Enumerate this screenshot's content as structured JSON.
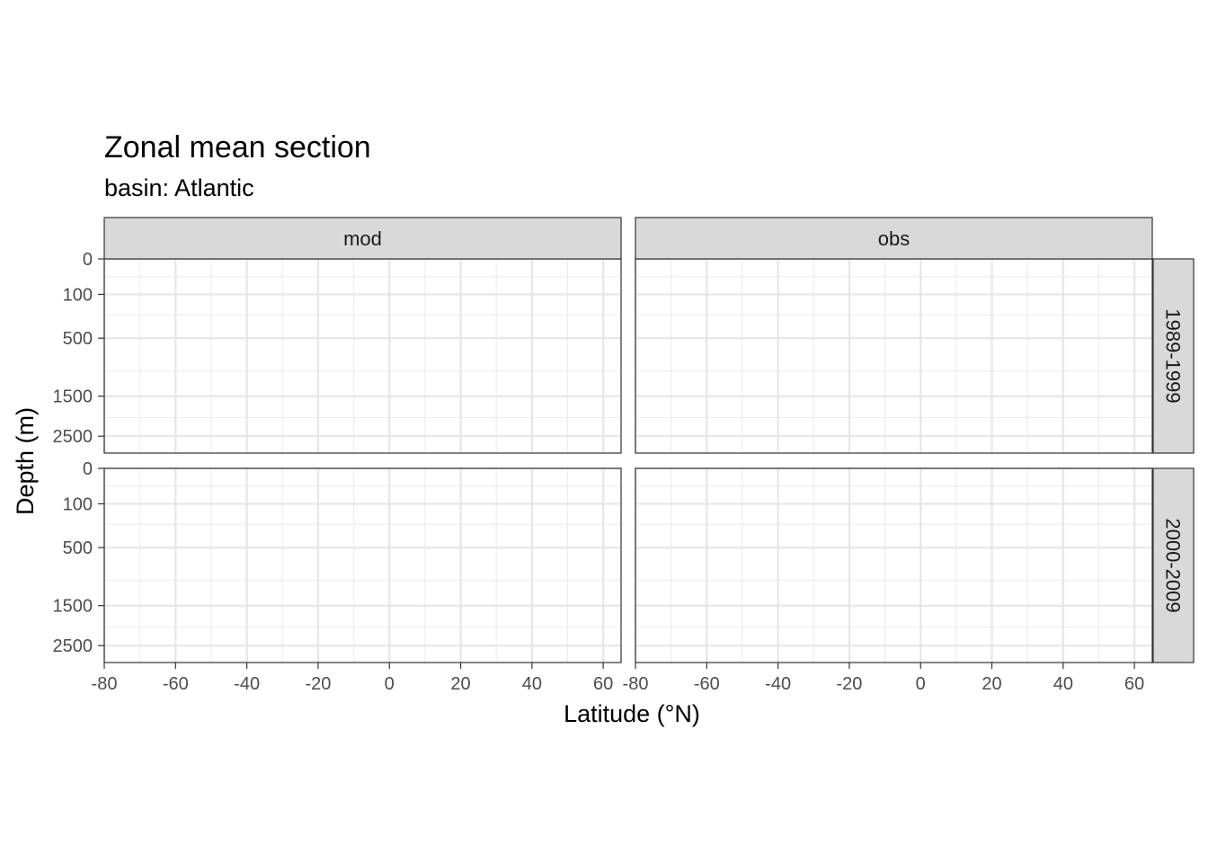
{
  "chart_data": {
    "type": "heatmap",
    "title": "Zonal mean section",
    "subtitle": "basin: Atlantic",
    "xlabel": "Latitude (°N)",
    "ylabel": "Depth (m)",
    "facet_columns": [
      "mod",
      "obs"
    ],
    "facet_rows": [
      "1989-1999",
      "2000-2009"
    ],
    "xlim": [
      -80,
      65
    ],
    "x_ticks": [
      -80,
      -60,
      -40,
      -20,
      0,
      20,
      40,
      60
    ],
    "x_minor_ticks": [
      -70,
      -50,
      -30,
      -10,
      10,
      30,
      50
    ],
    "y_scale": "reversed-sqrt",
    "ylim": [
      0,
      3000
    ],
    "y_ticks": [
      0,
      100,
      500,
      1500,
      2500
    ],
    "y_minor_ticks": [
      25,
      250,
      1000,
      2000,
      3000
    ],
    "grid": true,
    "values": []
  }
}
